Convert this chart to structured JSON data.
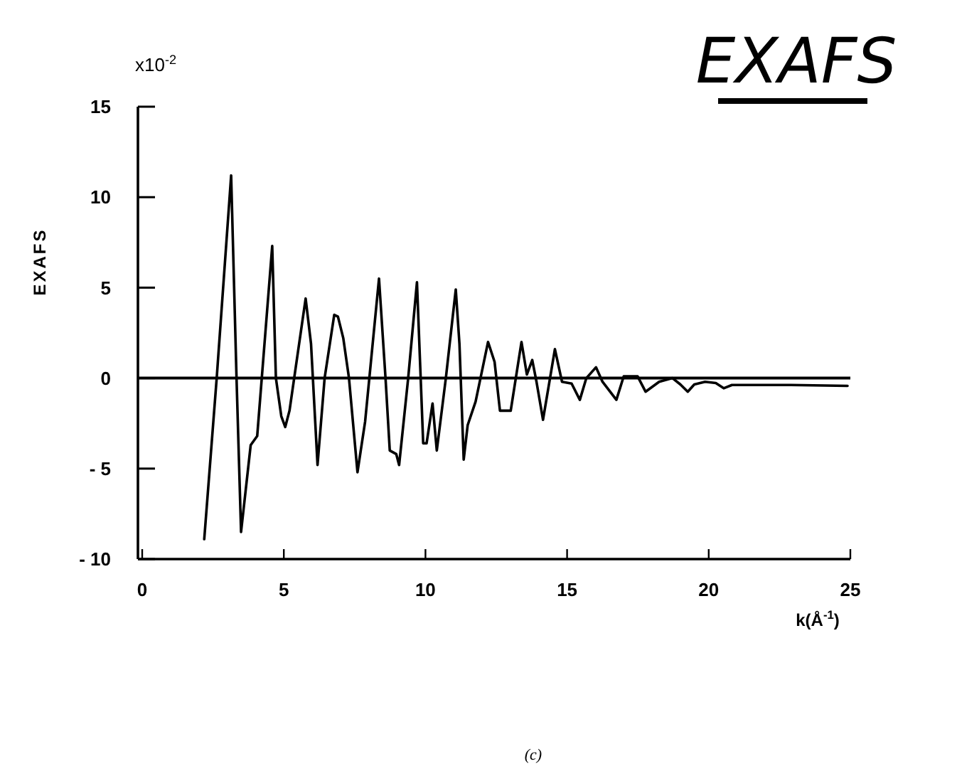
{
  "chart_data": {
    "type": "line",
    "ylabel": "EXAFS",
    "xlabel": "k(Å$^{-1}$)",
    "annotations": [
      "x10$^{-2}$",
      "EXAFS",
      "(c)"
    ],
    "xlim": [
      0,
      25
    ],
    "ylim": [
      -10,
      15
    ],
    "xticks": [
      0,
      5,
      10,
      15,
      20,
      25
    ],
    "yticks": [
      {
        "value": -10,
        "label": "- 10"
      },
      {
        "value": -5,
        "label": "- 5"
      },
      0,
      5,
      10,
      15
    ],
    "grid": false,
    "marker": "none",
    "line_style": "solid",
    "ref_lines": [
      {
        "axis": "y",
        "value": 0,
        "color": "#000000"
      }
    ],
    "series": [
      {
        "color": "#000000",
        "x": [
          2.19,
          2.63,
          3.14,
          3.33,
          3.49,
          3.83,
          4.06,
          4.59,
          4.72,
          4.91,
          5.05,
          5.2,
          5.77,
          5.96,
          6.19,
          6.44,
          6.78,
          6.91,
          7.1,
          7.3,
          7.6,
          7.87,
          8.36,
          8.59,
          8.74,
          8.97,
          9.07,
          9.39,
          9.7,
          9.92,
          10.04,
          10.25,
          10.4,
          10.72,
          11.07,
          11.2,
          11.35,
          11.49,
          11.77,
          12.21,
          12.44,
          12.63,
          13.01,
          13.39,
          13.58,
          13.77,
          13.92,
          14.15,
          14.57,
          14.82,
          15.16,
          15.45,
          15.68,
          16.02,
          16.25,
          16.74,
          17.0,
          17.49,
          17.77,
          18.25,
          18.72,
          19.0,
          19.26,
          19.49,
          19.87,
          20.25,
          20.53,
          20.82,
          22.9,
          24.9
        ],
        "values": [
          -8.9,
          0,
          11.2,
          0,
          -8.5,
          -3.7,
          -3.2,
          7.3,
          0,
          -2.1,
          -2.7,
          -1.8,
          4.4,
          1.9,
          -4.8,
          0,
          3.5,
          3.4,
          2.2,
          0,
          -5.2,
          -2.4,
          5.5,
          0,
          -4.0,
          -4.2,
          -4.8,
          0,
          5.3,
          -3.6,
          -3.6,
          -1.4,
          -4.0,
          0,
          4.9,
          1.9,
          -4.5,
          -2.6,
          -1.3,
          2.0,
          0.9,
          -1.8,
          -1.8,
          2.0,
          0.2,
          1.0,
          -0.2,
          -2.3,
          1.6,
          -0.2,
          -0.3,
          -1.2,
          0,
          0.6,
          -0.2,
          -1.2,
          0.1,
          0.1,
          -0.75,
          -0.2,
          0,
          -0.35,
          -0.75,
          -0.35,
          -0.2,
          -0.27,
          -0.56,
          -0.38,
          -0.38,
          -0.43
        ]
      }
    ]
  }
}
